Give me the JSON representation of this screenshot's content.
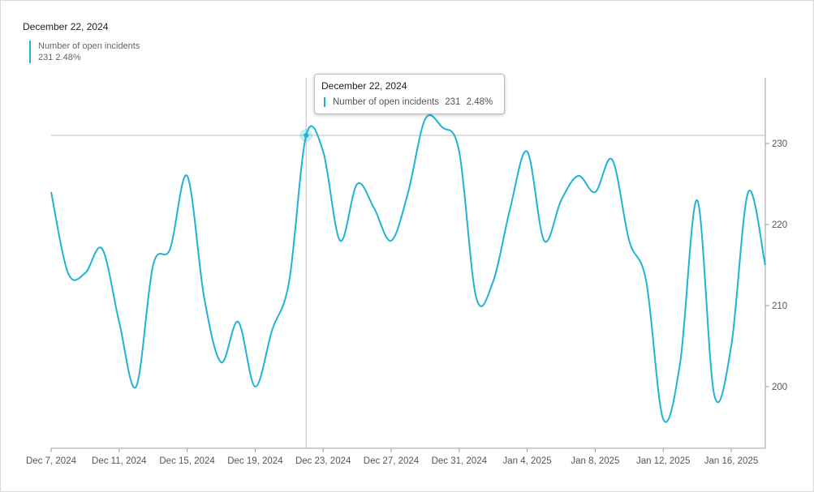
{
  "header": {
    "date": "December 22, 2024",
    "series_name": "Number of open incidents",
    "value": "231",
    "change": "2.48%"
  },
  "tooltip": {
    "date": "December 22, 2024",
    "series_name": "Number of open incidents",
    "value": "231",
    "change": "2.48%"
  },
  "colors": {
    "line": "#1fb3d6",
    "axis": "#9e9e9e",
    "crosshair": "#bdbdbd"
  },
  "chart_data": {
    "type": "line",
    "x_ticks": [
      "Dec 7, 2024",
      "Dec 11, 2024",
      "Dec 15, 2024",
      "Dec 19, 2024",
      "Dec 23, 2024",
      "Dec 27, 2024",
      "Dec 31, 2024",
      "Jan 4, 2025",
      "Jan 8, 2025",
      "Jan 12, 2025",
      "Jan 16, 2025"
    ],
    "y_ticks": [
      200,
      210,
      220,
      230
    ],
    "ylim": [
      194,
      238
    ],
    "y_axis_side": "right",
    "series": [
      {
        "name": "Number of open incidents",
        "x": [
          "2024-12-07",
          "2024-12-08",
          "2024-12-09",
          "2024-12-10",
          "2024-12-11",
          "2024-12-12",
          "2024-12-13",
          "2024-12-14",
          "2024-12-15",
          "2024-12-16",
          "2024-12-17",
          "2024-12-18",
          "2024-12-19",
          "2024-12-20",
          "2024-12-21",
          "2024-12-22",
          "2024-12-23",
          "2024-12-24",
          "2024-12-25",
          "2024-12-26",
          "2024-12-27",
          "2024-12-28",
          "2024-12-29",
          "2024-12-30",
          "2024-12-31",
          "2025-01-01",
          "2025-01-02",
          "2025-01-03",
          "2025-01-04",
          "2025-01-05",
          "2025-01-06",
          "2025-01-07",
          "2025-01-08",
          "2025-01-09",
          "2025-01-10",
          "2025-01-11",
          "2025-01-12",
          "2025-01-13",
          "2025-01-14",
          "2025-01-15",
          "2025-01-16",
          "2025-01-17",
          "2025-01-18"
        ],
        "values": [
          224,
          214,
          214,
          217,
          208,
          200,
          215,
          217,
          226,
          211,
          203,
          208,
          200,
          207,
          213,
          231,
          229,
          218,
          225,
          222,
          218,
          224,
          233,
          232,
          229,
          211,
          213,
          222,
          229,
          218,
          223,
          226,
          224,
          228,
          218,
          213,
          196,
          203,
          223,
          199,
          205,
          224,
          215
        ]
      }
    ],
    "highlight": {
      "x": "2024-12-22",
      "value": 231
    },
    "grid": false
  }
}
